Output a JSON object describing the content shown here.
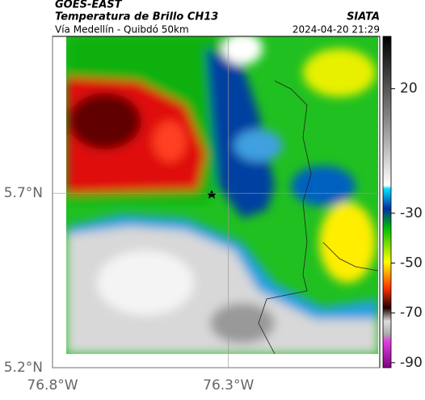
{
  "header": {
    "source": "GOES-EAST",
    "title": "Temperatura de Brillo CH13",
    "brand": "SIATA",
    "subtitle": "Vía Medellín - Quibdó 50km",
    "datetime": "2024-04-20 21:29"
  },
  "map": {
    "xlim": [
      -76.8,
      -75.87
    ],
    "ylim": [
      5.2,
      6.15
    ],
    "xticks": [
      {
        "value": -76.8,
        "label": "76.8°W"
      },
      {
        "value": -76.3,
        "label": "76.3°W"
      }
    ],
    "yticks": [
      {
        "value": 5.7,
        "label": "5.7°N"
      },
      {
        "value": 5.2,
        "label": "5.2°N"
      }
    ]
  },
  "colorbar": {
    "lim": [
      -92,
      41
    ],
    "ticks": [
      20,
      -30,
      -50,
      -70,
      -90
    ]
  }
}
